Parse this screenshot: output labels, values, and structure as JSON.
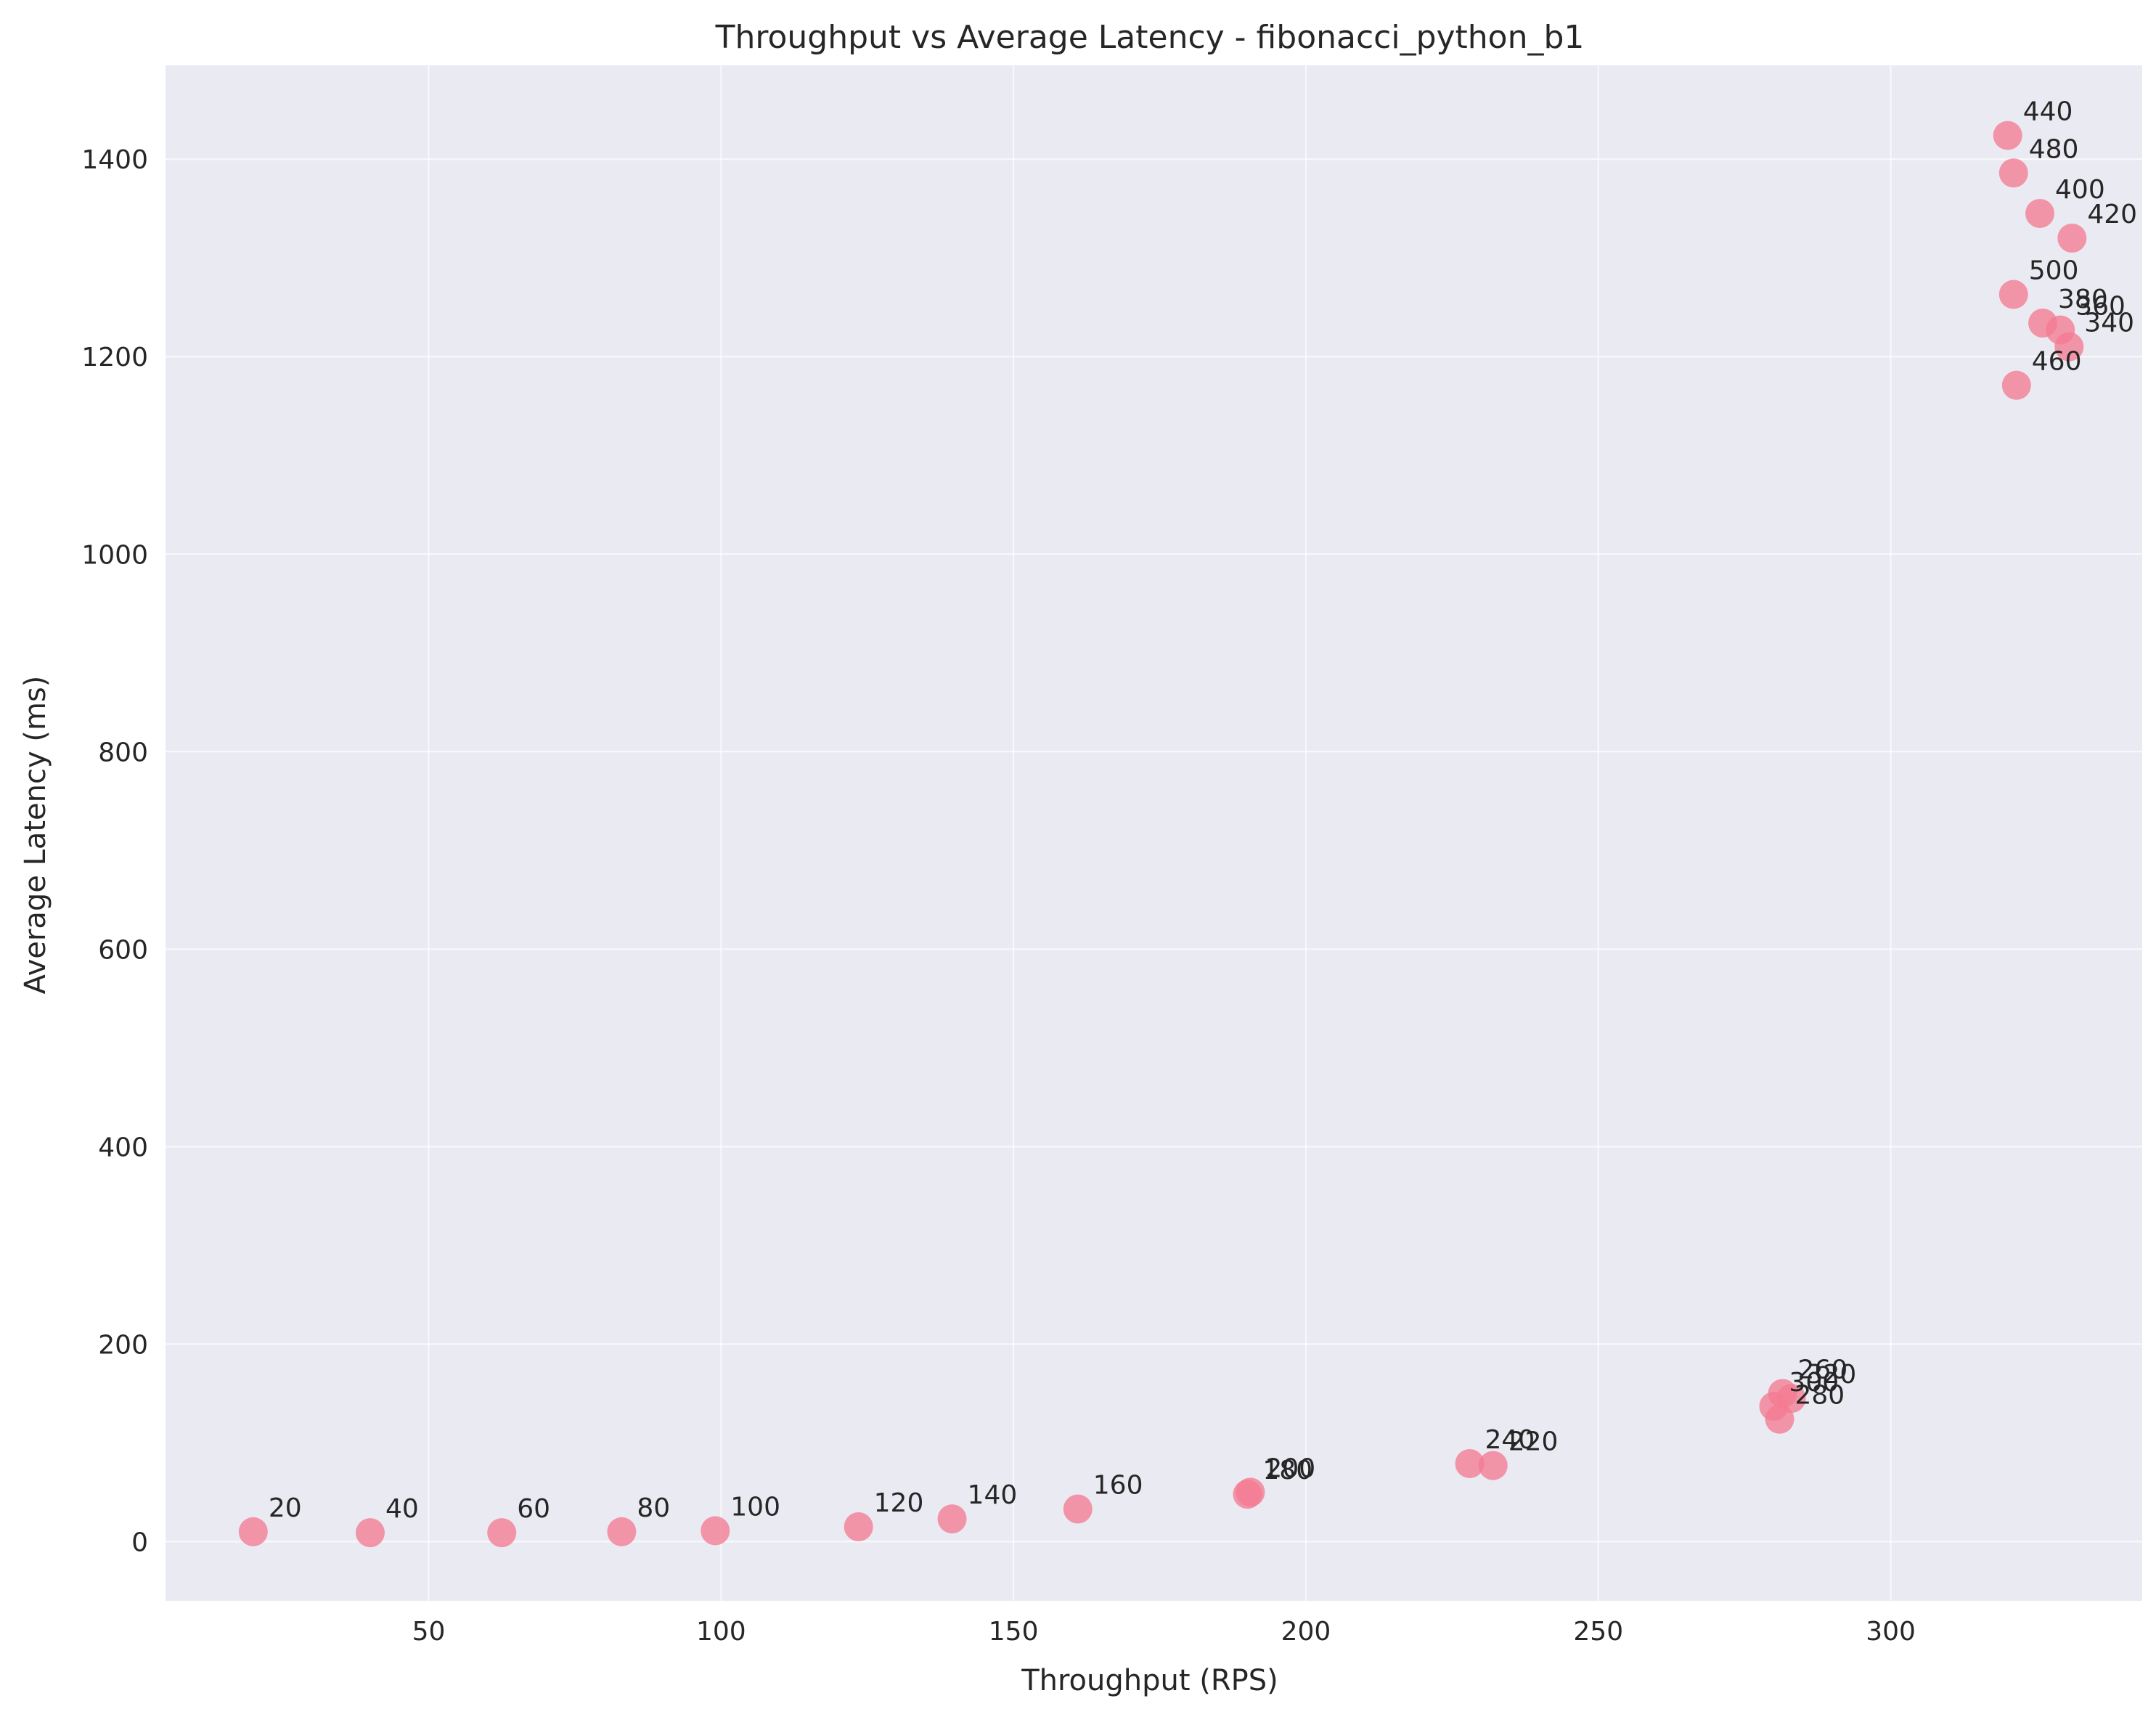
{
  "chart_data": {
    "type": "scatter",
    "title": "Throughput vs Average Latency - fibonacci_python_b1",
    "xlabel": "Throughput (RPS)",
    "ylabel": "Average Latency (ms)",
    "xlim": [
      5,
      343
    ],
    "ylim": [
      -60,
      1495
    ],
    "xticks": [
      50,
      100,
      150,
      200,
      250,
      300
    ],
    "yticks": [
      0,
      200,
      400,
      600,
      800,
      1000,
      1200,
      1400
    ],
    "grid": true,
    "point_color": "#f37b92",
    "background_color": "#eaeaf2",
    "points": [
      {
        "label": "20",
        "x": 20,
        "y": 10
      },
      {
        "label": "40",
        "x": 40,
        "y": 9
      },
      {
        "label": "60",
        "x": 62.5,
        "y": 9
      },
      {
        "label": "80",
        "x": 83,
        "y": 10
      },
      {
        "label": "100",
        "x": 99,
        "y": 11
      },
      {
        "label": "120",
        "x": 123.5,
        "y": 15
      },
      {
        "label": "140",
        "x": 139.5,
        "y": 23
      },
      {
        "label": "160",
        "x": 161,
        "y": 33
      },
      {
        "label": "180",
        "x": 190,
        "y": 48
      },
      {
        "label": "200",
        "x": 190.5,
        "y": 50
      },
      {
        "label": "240",
        "x": 228,
        "y": 79
      },
      {
        "label": "220",
        "x": 232,
        "y": 77
      },
      {
        "label": "260",
        "x": 281.5,
        "y": 150
      },
      {
        "label": "300",
        "x": 280,
        "y": 137
      },
      {
        "label": "320",
        "x": 283,
        "y": 145
      },
      {
        "label": "280",
        "x": 281,
        "y": 124
      },
      {
        "label": "440",
        "x": 320,
        "y": 1424
      },
      {
        "label": "480",
        "x": 321,
        "y": 1386
      },
      {
        "label": "400",
        "x": 325.5,
        "y": 1345
      },
      {
        "label": "420",
        "x": 331,
        "y": 1320
      },
      {
        "label": "500",
        "x": 321,
        "y": 1263
      },
      {
        "label": "380",
        "x": 326,
        "y": 1234
      },
      {
        "label": "360",
        "x": 329,
        "y": 1227
      },
      {
        "label": "340",
        "x": 330.5,
        "y": 1210
      },
      {
        "label": "460",
        "x": 321.5,
        "y": 1171
      }
    ]
  }
}
